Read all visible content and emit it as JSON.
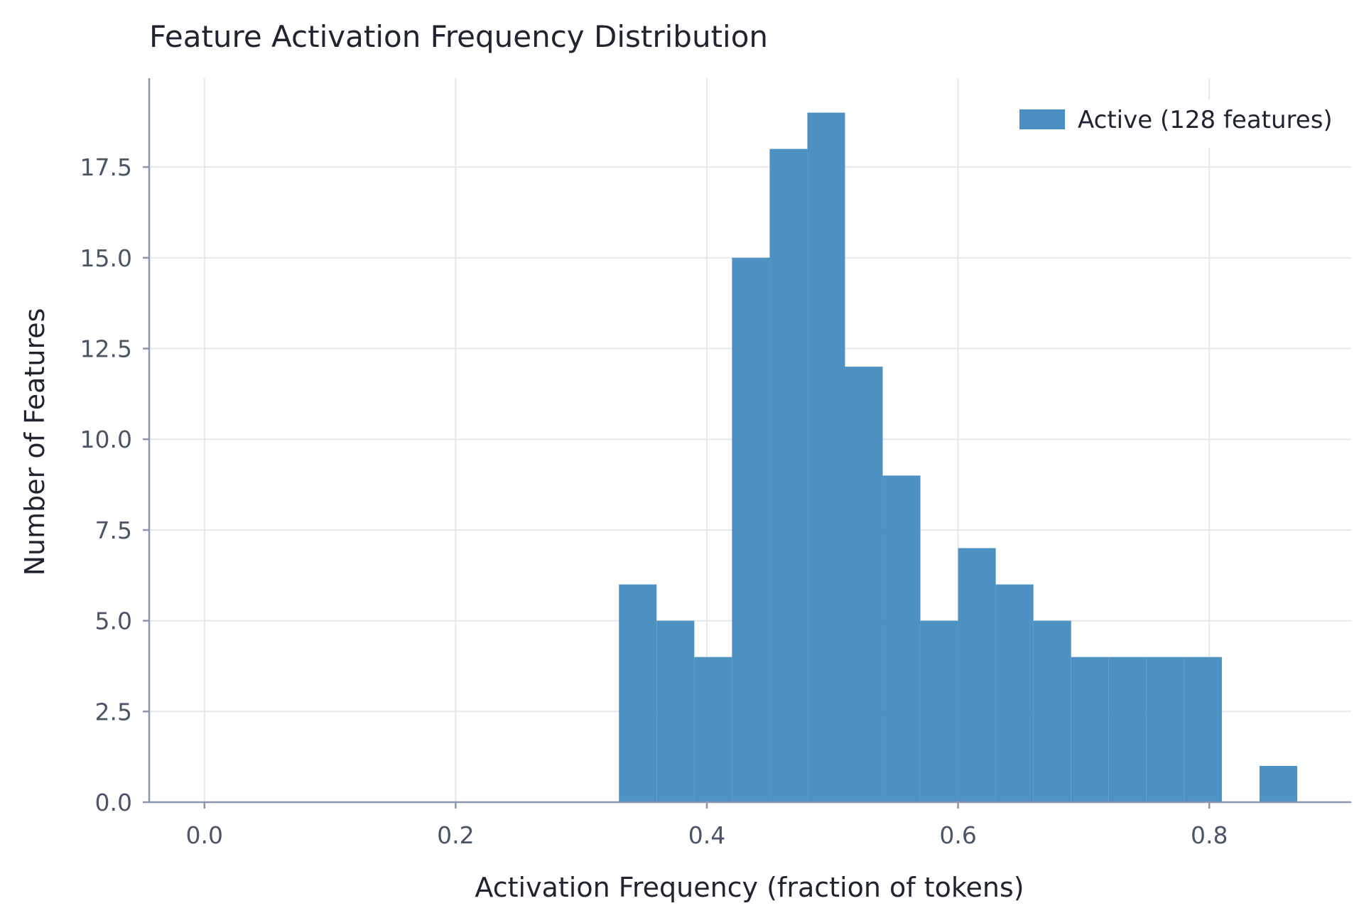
{
  "chart_data": {
    "type": "bar",
    "title": "Feature Activation Frequency Distribution",
    "xlabel": "Activation Frequency (fraction of tokens)",
    "ylabel": "Number of Features",
    "xlim": [
      -0.044,
      0.913
    ],
    "ylim": [
      0,
      19.95
    ],
    "xticks": [
      "0.0",
      "0.2",
      "0.4",
      "0.6",
      "0.8"
    ],
    "yticks": [
      "0.0",
      "2.5",
      "5.0",
      "7.5",
      "10.0",
      "12.5",
      "15.0",
      "17.5"
    ],
    "grid": true,
    "legend_position": "top-right",
    "series": [
      {
        "name": "Active (128 features)",
        "color": "#4a8fc2",
        "bins": [
          {
            "x0": 0.33,
            "x1": 0.36,
            "count": 6
          },
          {
            "x0": 0.36,
            "x1": 0.39,
            "count": 5
          },
          {
            "x0": 0.39,
            "x1": 0.42,
            "count": 4
          },
          {
            "x0": 0.42,
            "x1": 0.45,
            "count": 15
          },
          {
            "x0": 0.45,
            "x1": 0.48,
            "count": 18
          },
          {
            "x0": 0.48,
            "x1": 0.51,
            "count": 19
          },
          {
            "x0": 0.51,
            "x1": 0.54,
            "count": 12
          },
          {
            "x0": 0.54,
            "x1": 0.57,
            "count": 9
          },
          {
            "x0": 0.57,
            "x1": 0.6,
            "count": 5
          },
          {
            "x0": 0.6,
            "x1": 0.63,
            "count": 7
          },
          {
            "x0": 0.63,
            "x1": 0.66,
            "count": 6
          },
          {
            "x0": 0.66,
            "x1": 0.69,
            "count": 5
          },
          {
            "x0": 0.69,
            "x1": 0.72,
            "count": 4
          },
          {
            "x0": 0.72,
            "x1": 0.75,
            "count": 4
          },
          {
            "x0": 0.75,
            "x1": 0.78,
            "count": 4
          },
          {
            "x0": 0.78,
            "x1": 0.81,
            "count": 4
          },
          {
            "x0": 0.81,
            "x1": 0.84,
            "count": 0
          },
          {
            "x0": 0.84,
            "x1": 0.87,
            "count": 1
          }
        ]
      }
    ]
  }
}
